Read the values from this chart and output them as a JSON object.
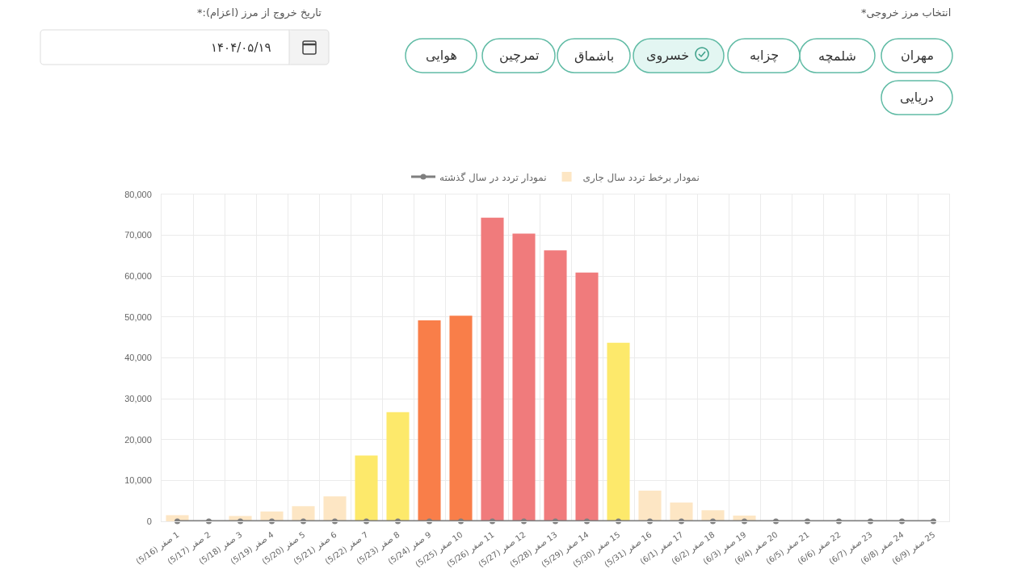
{
  "chart_data": {
    "type": "bar",
    "categories": [
      "1 صفر (5/16)",
      "2 صفر (5/17)",
      "3 صفر (5/18)",
      "4 صفر (5/19)",
      "5 صفر (5/20)",
      "6 صفر (5/21)",
      "7 صفر (5/22)",
      "8 صفر (5/23)",
      "9 صفر (5/24)",
      "10 صفر (5/25)",
      "11 صفر (5/26)",
      "12 صفر (5/27)",
      "13 صفر (5/28)",
      "14 صفر (5/29)",
      "15 صفر (5/30)",
      "16 صفر (5/31)",
      "17 صفر (6/1)",
      "18 صفر (6/2)",
      "19 صفر (6/3)",
      "20 صفر (6/4)",
      "21 صفر (6/5)",
      "22 صفر (6/6)",
      "23 صفر (6/7)",
      "24 صفر (6/8)",
      "25 صفر (6/9)"
    ],
    "series": [
      {
        "name": "نمودار تردد در سال گذشته",
        "type": "line",
        "color": "#7f7f7f",
        "values": [
          0,
          0,
          0,
          0,
          0,
          0,
          0,
          0,
          0,
          0,
          0,
          0,
          0,
          0,
          0,
          0,
          0,
          0,
          0,
          0,
          0,
          0,
          0,
          0,
          0
        ]
      },
      {
        "name": "نمودار برخط تردد سال جاری",
        "colors": [
          "#fde6c4",
          "#fde6c4",
          "#fde6c4",
          "#fde6c4",
          "#fde6c4",
          "#fde6c4",
          "#fde96b",
          "#fde96b",
          "#f97e49",
          "#f97e49",
          "#f07b7c",
          "#f07b7c",
          "#f07b7c",
          "#f07b7c",
          "#fde96b",
          "#fde6c4",
          "#fde6c4",
          "#fde6c4",
          "#fde6c4",
          "#fde6c4",
          "#fde6c4",
          "#fde6c4",
          "#fde6c4",
          "#fde6c4",
          "#fde6c4"
        ],
        "values": [
          1500,
          0,
          1300,
          2400,
          3700,
          6100,
          16100,
          26700,
          49200,
          50300,
          74300,
          70400,
          66300,
          60900,
          43700,
          7500,
          4600,
          2700,
          1400,
          0,
          0,
          0,
          0,
          0,
          0
        ]
      }
    ],
    "ylim": [
      0,
      80000
    ],
    "yticks": [
      0,
      {
        "value": 10000,
        "label": "10,000"
      },
      {
        "value": 20000,
        "label": "20,000"
      },
      {
        "value": 30000,
        "label": "30,000"
      },
      {
        "value": 40000,
        "label": "40,000"
      },
      {
        "value": 50000,
        "label": "50,000"
      },
      {
        "value": 60000,
        "label": "60,000"
      },
      {
        "value": 70000,
        "label": "70,000"
      },
      {
        "value": 80000,
        "label": "80,000"
      }
    ],
    "grid": true,
    "legend": "top",
    "marker": "circle",
    "annotations": [
      "انتخاب مرز خروجی*",
      "مهران",
      "شلمچه",
      "چزابه",
      "خسروی",
      "باشماق",
      "تمرچین",
      "هوایی",
      "دریایی",
      "تاریخ خروج از مرز (اعزام):*",
      "۱۴۰۴/۰۵/۱۹"
    ]
  }
}
